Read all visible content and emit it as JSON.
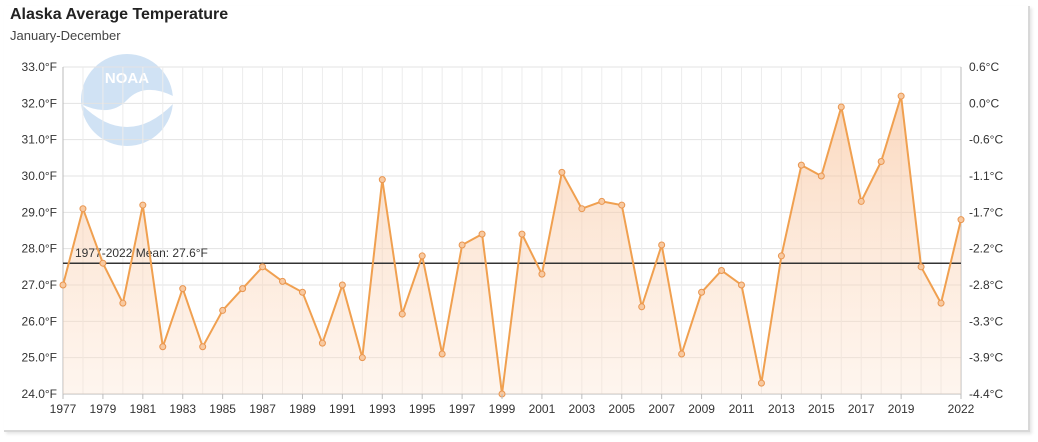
{
  "chart_data": {
    "type": "line",
    "title": "Alaska Average Temperature",
    "subtitle": "January-December",
    "x": [
      1977,
      1978,
      1979,
      1980,
      1981,
      1982,
      1983,
      1984,
      1985,
      1986,
      1987,
      1988,
      1989,
      1990,
      1991,
      1992,
      1993,
      1994,
      1995,
      1996,
      1997,
      1998,
      1999,
      2000,
      2001,
      2002,
      2003,
      2004,
      2005,
      2006,
      2007,
      2008,
      2009,
      2010,
      2011,
      2012,
      2013,
      2014,
      2015,
      2016,
      2017,
      2018,
      2019,
      2020,
      2021,
      2022
    ],
    "series": [
      {
        "values": [
          27.0,
          29.1,
          27.6,
          26.5,
          29.2,
          25.3,
          26.9,
          25.3,
          26.3,
          26.9,
          27.5,
          27.1,
          26.8,
          25.4,
          27.0,
          25.0,
          29.9,
          26.2,
          27.8,
          25.1,
          28.1,
          28.4,
          24.0,
          28.4,
          27.3,
          30.1,
          29.1,
          29.3,
          29.2,
          26.4,
          28.1,
          25.1,
          26.8,
          27.4,
          27.0,
          24.3,
          27.8,
          30.3,
          30.0,
          31.9,
          29.3,
          30.4,
          32.2,
          27.5,
          26.5,
          28.8
        ],
        "color": "#f0a050"
      }
    ],
    "ylim": [
      24.0,
      33.0
    ],
    "y_ticks": [
      "24.0°F",
      "25.0°F",
      "26.0°F",
      "27.0°F",
      "28.0°F",
      "29.0°F",
      "30.0°F",
      "31.0°F",
      "32.0°F",
      "33.0°F"
    ],
    "y2_ticks": [
      "-4.4°C",
      "-3.9°C",
      "-3.3°C",
      "-2.8°C",
      "-2.2°C",
      "-1.7°C",
      "-1.1°C",
      "-0.6°C",
      "0.0°C",
      "0.6°C"
    ],
    "x_tick_labels": [
      "1977",
      "1979",
      "1981",
      "1983",
      "1985",
      "1987",
      "1989",
      "1991",
      "1993",
      "1995",
      "1997",
      "1999",
      "2001",
      "2003",
      "2005",
      "2007",
      "2009",
      "2011",
      "2013",
      "2015",
      "2017",
      "2019",
      "2022"
    ],
    "mean": {
      "value": 27.6,
      "label": "1977-2022 Mean: 27.6°F",
      "color": "#333333"
    },
    "grid": true,
    "logo": {
      "text": "NOAA",
      "color": "#2f7fd0"
    }
  }
}
